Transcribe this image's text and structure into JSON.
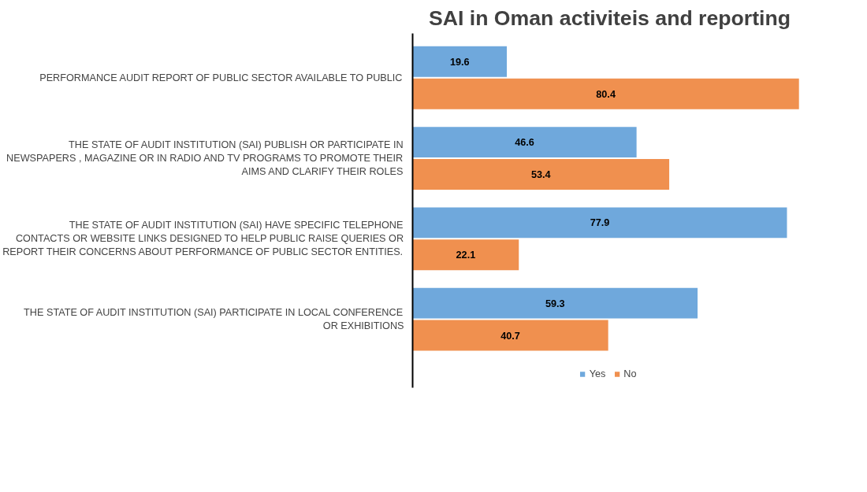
{
  "chart_data": {
    "type": "bar",
    "orientation": "horizontal",
    "title": "SAI in Oman activiteis and reporting",
    "categories": [
      "PERFORMANCE AUDIT REPORT OF PUBLIC SECTOR AVAILABLE TO PUBLIC",
      "THE STATE OF AUDIT INSTITUTION (SAI) PUBLISH OR PARTICIPATE IN NEWSPAPERS , MAGAZINE OR IN RADIO AND TV PROGRAMS TO PROMOTE THEIR AIMS AND CLARIFY THEIR ROLES",
      "THE STATE OF AUDIT INSTITUTION (SAI) HAVE SPECIFIC TELEPHONE CONTACTS OR WEBSITE LINKS DESIGNED TO HELP PUBLIC RAISE QUERIES OR REPORT THEIR CONCERNS ABOUT PERFORMANCE OF PUBLIC SECTOR ENTITIES.",
      "THE STATE OF AUDIT INSTITUTION (SAI) PARTICIPATE IN LOCAL CONFERENCE OR EXHIBITIONS"
    ],
    "series": [
      {
        "name": "Yes",
        "color": "#6fa8dc",
        "values": [
          19.6,
          46.6,
          77.9,
          59.3
        ]
      },
      {
        "name": "No",
        "color": "#f0904f",
        "values": [
          80.4,
          53.4,
          22.1,
          40.7
        ]
      }
    ],
    "data_labels": true,
    "legend": "bottom",
    "grid": false
  }
}
